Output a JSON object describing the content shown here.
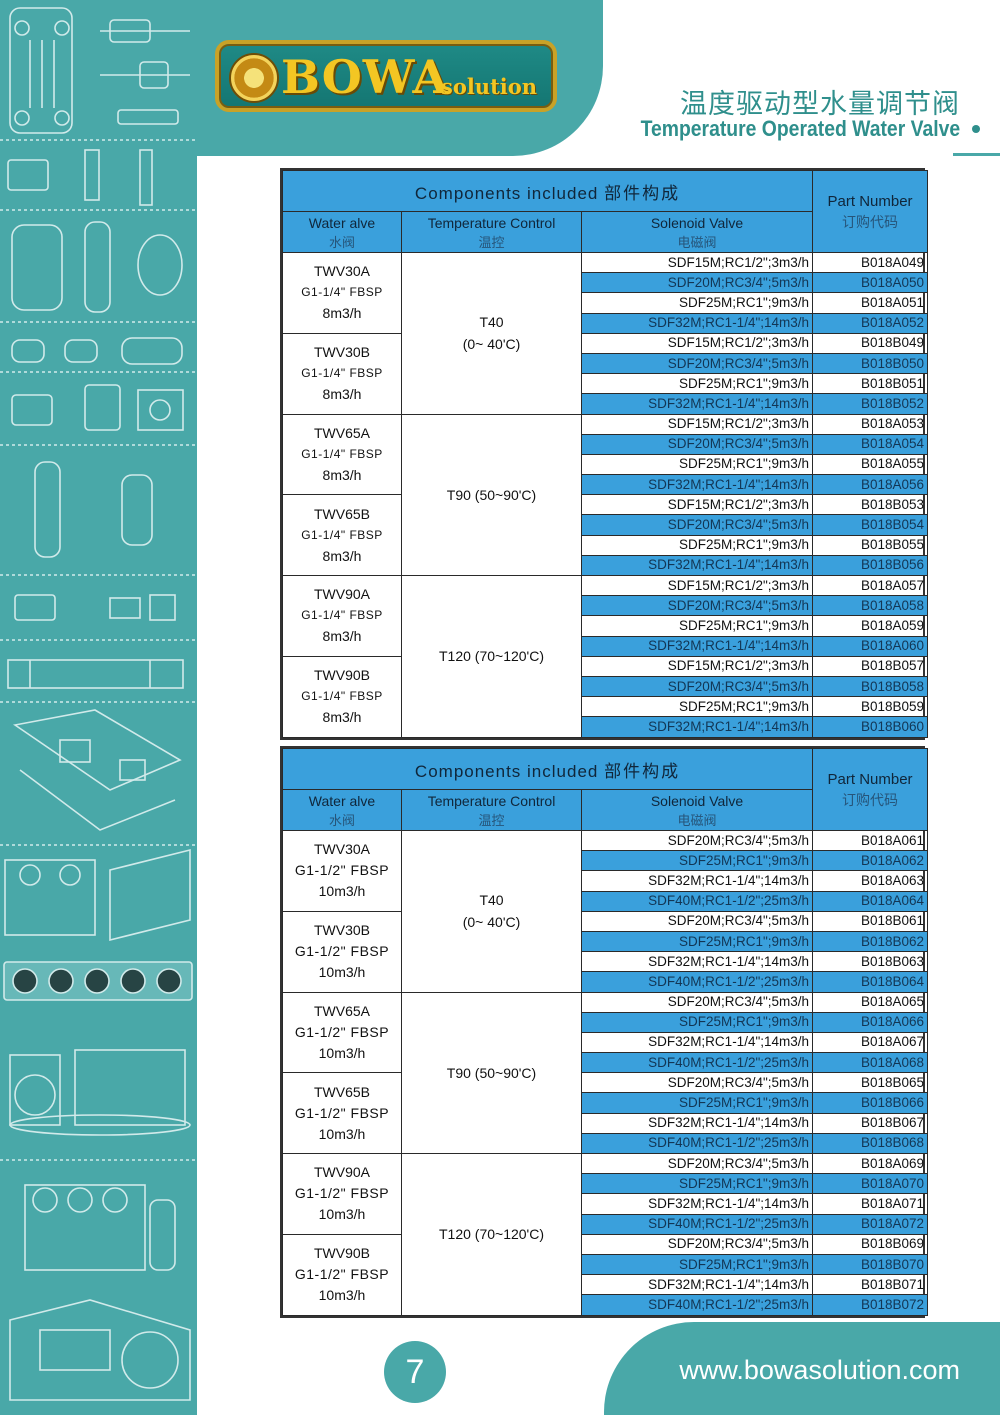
{
  "brand": {
    "name": "BOWA",
    "sub": "solution"
  },
  "title": {
    "cn": "温度驱动型水量调节阀",
    "en": "Temperature Operated Water Valve"
  },
  "tables": [
    {
      "header": {
        "components_en": "Components included",
        "components_cn": "部件构成",
        "water_valve_en": "Water alve",
        "water_valve_cn": "水阀",
        "temp_control_en": "Temperature Control",
        "temp_control_cn": "温控",
        "solenoid_en": "Solenoid Valve",
        "solenoid_cn": "电磁阀",
        "part_en": "Part Number",
        "part_cn": "订购代码"
      },
      "valves": [
        {
          "model": "TWV30A",
          "conn": "G1-1/4\" FBSP",
          "flow": "8m3/h"
        },
        {
          "model": "TWV30B",
          "conn": "G1-1/4\" FBSP",
          "flow": "8m3/h"
        },
        {
          "model": "TWV65A",
          "conn": "G1-1/4\" FBSP",
          "flow": "8m3/h"
        },
        {
          "model": "TWV65B",
          "conn": "G1-1/4\" FBSP",
          "flow": "8m3/h"
        },
        {
          "model": "TWV90A",
          "conn": "G1-1/4\" FBSP",
          "flow": "8m3/h"
        },
        {
          "model": "TWV90B",
          "conn": "G1-1/4\" FBSP",
          "flow": "8m3/h"
        }
      ],
      "temps": [
        {
          "line1": "T40",
          "line2": "(0~ 40'C)"
        },
        {
          "line1": "T90 (50~90'C)",
          "line2": ""
        },
        {
          "line1": "T120 (70~120'C)",
          "line2": ""
        }
      ],
      "rows": [
        {
          "sol": "SDF15M;RC1/2\";3m3/h",
          "pn": "B018A049"
        },
        {
          "sol": "SDF20M;RC3/4\";5m3/h",
          "pn": "B018A050"
        },
        {
          "sol": "SDF25M;RC1\";9m3/h",
          "pn": "B018A051"
        },
        {
          "sol": "SDF32M;RC1-1/4\";14m3/h",
          "pn": "B018A052"
        },
        {
          "sol": "SDF15M;RC1/2\";3m3/h",
          "pn": "B018B049"
        },
        {
          "sol": "SDF20M;RC3/4\";5m3/h",
          "pn": "B018B050"
        },
        {
          "sol": "SDF25M;RC1\";9m3/h",
          "pn": "B018B051"
        },
        {
          "sol": "SDF32M;RC1-1/4\";14m3/h",
          "pn": "B018B052"
        },
        {
          "sol": "SDF15M;RC1/2\";3m3/h",
          "pn": "B018A053"
        },
        {
          "sol": "SDF20M;RC3/4\";5m3/h",
          "pn": "B018A054"
        },
        {
          "sol": "SDF25M;RC1\";9m3/h",
          "pn": "B018A055"
        },
        {
          "sol": "SDF32M;RC1-1/4\";14m3/h",
          "pn": "B018A056"
        },
        {
          "sol": "SDF15M;RC1/2\";3m3/h",
          "pn": "B018B053"
        },
        {
          "sol": "SDF20M;RC3/4\";5m3/h",
          "pn": "B018B054"
        },
        {
          "sol": "SDF25M;RC1\";9m3/h",
          "pn": "B018B055"
        },
        {
          "sol": "SDF32M;RC1-1/4\";14m3/h",
          "pn": "B018B056"
        },
        {
          "sol": "SDF15M;RC1/2\";3m3/h",
          "pn": "B018A057"
        },
        {
          "sol": "SDF20M;RC3/4\";5m3/h",
          "pn": "B018A058"
        },
        {
          "sol": "SDF25M;RC1\";9m3/h",
          "pn": "B018A059"
        },
        {
          "sol": "SDF32M;RC1-1/4\";14m3/h",
          "pn": "B018A060"
        },
        {
          "sol": "SDF15M;RC1/2\";3m3/h",
          "pn": "B018B057"
        },
        {
          "sol": "SDF20M;RC3/4\";5m3/h",
          "pn": "B018B058"
        },
        {
          "sol": "SDF25M;RC1\";9m3/h",
          "pn": "B018B059"
        },
        {
          "sol": "SDF32M;RC1-1/4\";14m3/h",
          "pn": "B018B060"
        }
      ]
    },
    {
      "header": {
        "components_en": "Components included",
        "components_cn": "部件构成",
        "water_valve_en": "Water alve",
        "water_valve_cn": "水阀",
        "temp_control_en": "Temperature Control",
        "temp_control_cn": "温控",
        "solenoid_en": "Solenoid Valve",
        "solenoid_cn": "电磁阀",
        "part_en": "Part Number",
        "part_cn": "订购代码"
      },
      "valves": [
        {
          "model": "TWV30A",
          "conn": "G1-1/2\" FBSP",
          "flow": "10m3/h"
        },
        {
          "model": "TWV30B",
          "conn": "G1-1/2\" FBSP",
          "flow": "10m3/h"
        },
        {
          "model": "TWV65A",
          "conn": "G1-1/2\" FBSP",
          "flow": "10m3/h"
        },
        {
          "model": "TWV65B",
          "conn": "G1-1/2\" FBSP",
          "flow": "10m3/h"
        },
        {
          "model": "TWV90A",
          "conn": "G1-1/2\" FBSP",
          "flow": "10m3/h"
        },
        {
          "model": "TWV90B",
          "conn": "G1-1/2\" FBSP",
          "flow": "10m3/h"
        }
      ],
      "temps": [
        {
          "line1": "T40",
          "line2": "(0~ 40'C)"
        },
        {
          "line1": "T90 (50~90'C)",
          "line2": ""
        },
        {
          "line1": "T120 (70~120'C)",
          "line2": ""
        }
      ],
      "rows": [
        {
          "sol": "SDF20M;RC3/4\";5m3/h",
          "pn": "B018A061"
        },
        {
          "sol": "SDF25M;RC1\";9m3/h",
          "pn": "B018A062"
        },
        {
          "sol": "SDF32M;RC1-1/4\";14m3/h",
          "pn": "B018A063"
        },
        {
          "sol": "SDF40M;RC1-1/2\";25m3/h",
          "pn": "B018A064"
        },
        {
          "sol": "SDF20M;RC3/4\";5m3/h",
          "pn": "B018B061"
        },
        {
          "sol": "SDF25M;RC1\";9m3/h",
          "pn": "B018B062"
        },
        {
          "sol": "SDF32M;RC1-1/4\";14m3/h",
          "pn": "B018B063"
        },
        {
          "sol": "SDF40M;RC1-1/2\";25m3/h",
          "pn": "B018B064"
        },
        {
          "sol": "SDF20M;RC3/4\";5m3/h",
          "pn": "B018A065"
        },
        {
          "sol": "SDF25M;RC1\";9m3/h",
          "pn": "B018A066"
        },
        {
          "sol": "SDF32M;RC1-1/4\";14m3/h",
          "pn": "B018A067"
        },
        {
          "sol": "SDF40M;RC1-1/2\";25m3/h",
          "pn": "B018A068"
        },
        {
          "sol": "SDF20M;RC3/4\";5m3/h",
          "pn": "B018B065"
        },
        {
          "sol": "SDF25M;RC1\";9m3/h",
          "pn": "B018B066"
        },
        {
          "sol": "SDF32M;RC1-1/4\";14m3/h",
          "pn": "B018B067"
        },
        {
          "sol": "SDF40M;RC1-1/2\";25m3/h",
          "pn": "B018B068"
        },
        {
          "sol": "SDF20M;RC3/4\";5m3/h",
          "pn": "B018A069"
        },
        {
          "sol": "SDF25M;RC1\";9m3/h",
          "pn": "B018A070"
        },
        {
          "sol": "SDF32M;RC1-1/4\";14m3/h",
          "pn": "B018A071"
        },
        {
          "sol": "SDF40M;RC1-1/2\";25m3/h",
          "pn": "B018A072"
        },
        {
          "sol": "SDF20M;RC3/4\";5m3/h",
          "pn": "B018B069"
        },
        {
          "sol": "SDF25M;RC1\";9m3/h",
          "pn": "B018B070"
        },
        {
          "sol": "SDF32M;RC1-1/4\";14m3/h",
          "pn": "B018B071"
        },
        {
          "sol": "SDF40M;RC1-1/2\";25m3/h",
          "pn": "B018B072"
        }
      ]
    }
  ],
  "footer": {
    "page": "7",
    "url": "www.bowasolution.com"
  },
  "colors": {
    "teal": "#49a8a8",
    "table_blue": "#3aa0dc",
    "gold": "#f3c623"
  }
}
